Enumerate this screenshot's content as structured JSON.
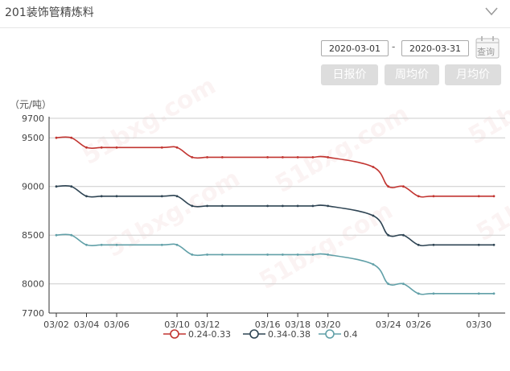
{
  "title": "201装饰管精炼料",
  "controls": {
    "start_date": "2020-03-01",
    "end_date": "2020-03-31",
    "separator": "-",
    "query_label": "查询",
    "buttons": [
      "日报价",
      "周均价",
      "月均价"
    ]
  },
  "watermark": "51bxg.com",
  "chart_data": {
    "type": "line",
    "unit_label": "（元/吨）",
    "ylim": [
      7700,
      9700
    ],
    "y_ticks": [
      7700,
      8000,
      8500,
      9000,
      9500,
      9700
    ],
    "x_ticks": [
      "03/02",
      "03/04",
      "03/06",
      "03/10",
      "03/12",
      "03/16",
      "03/18",
      "03/20",
      "03/24",
      "03/26",
      "03/30"
    ],
    "x": [
      "03/02",
      "03/03",
      "03/04",
      "03/05",
      "03/06",
      "03/09",
      "03/10",
      "03/11",
      "03/12",
      "03/13",
      "03/16",
      "03/17",
      "03/18",
      "03/19",
      "03/20",
      "03/23",
      "03/24",
      "03/25",
      "03/26",
      "03/27",
      "03/30",
      "03/31"
    ],
    "grid": true,
    "legend_position": "bottom",
    "series": [
      {
        "name": "0.24-0.33",
        "color": "#c23531",
        "values": [
          9500,
          9500,
          9400,
          9400,
          9400,
          9400,
          9400,
          9300,
          9300,
          9300,
          9300,
          9300,
          9300,
          9300,
          9300,
          9200,
          9000,
          9000,
          8900,
          8900,
          8900,
          8900
        ]
      },
      {
        "name": "0.34-0.38",
        "color": "#2f4554",
        "values": [
          9000,
          9000,
          8900,
          8900,
          8900,
          8900,
          8900,
          8800,
          8800,
          8800,
          8800,
          8800,
          8800,
          8800,
          8800,
          8700,
          8500,
          8500,
          8400,
          8400,
          8400,
          8400
        ]
      },
      {
        "name": "0.4",
        "color": "#61a0a8",
        "values": [
          8500,
          8500,
          8400,
          8400,
          8400,
          8400,
          8400,
          8300,
          8300,
          8300,
          8300,
          8300,
          8300,
          8300,
          8300,
          8200,
          8000,
          8000,
          7900,
          7900,
          7900,
          7900
        ]
      }
    ]
  }
}
